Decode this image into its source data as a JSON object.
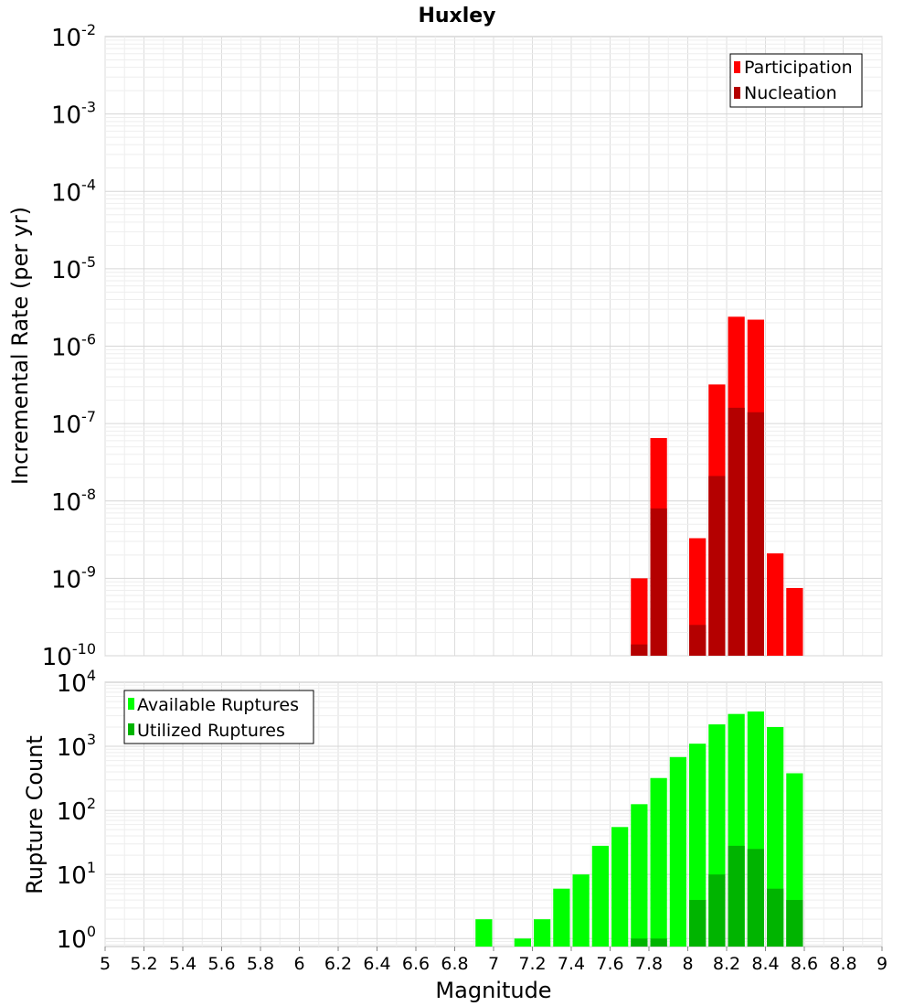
{
  "title": "Huxley",
  "chart_data": [
    {
      "type": "bar",
      "ylabel": "Incremental Rate (per yr)",
      "yscale": "log",
      "ylim": [
        1e-10,
        0.01
      ],
      "xlim": [
        5,
        9
      ],
      "ytick_exponents": [
        "-10",
        "-9",
        "-8",
        "-7",
        "-6",
        "-5",
        "-4",
        "-3",
        "-2"
      ],
      "ytick_base": "10",
      "grid": true,
      "legend_position": "top-right",
      "bin_width": 0.1,
      "series": [
        {
          "name": "Participation",
          "color": "#ff0000",
          "points": [
            [
              7.75,
              1e-09
            ],
            [
              7.85,
              6.5e-08
            ],
            [
              8.05,
              3.3e-09
            ],
            [
              8.15,
              3.2e-07
            ],
            [
              8.25,
              2.4e-06
            ],
            [
              8.35,
              2.2e-06
            ],
            [
              8.45,
              2.1e-09
            ],
            [
              8.55,
              7.5e-10
            ]
          ]
        },
        {
          "name": "Nucleation",
          "color": "#b40000",
          "points": [
            [
              7.75,
              1.4e-10
            ],
            [
              7.85,
              8e-09
            ],
            [
              8.05,
              2.5e-10
            ],
            [
              8.15,
              2.1e-08
            ],
            [
              8.25,
              1.6e-07
            ],
            [
              8.35,
              1.4e-07
            ]
          ]
        }
      ]
    },
    {
      "type": "bar",
      "ylabel": "Rupture Count",
      "xlabel": "Magnitude",
      "yscale": "log",
      "ylim": [
        0.75,
        10000
      ],
      "xlim": [
        5,
        9
      ],
      "ytick_exponents": [
        "0",
        "1",
        "2",
        "3",
        "4"
      ],
      "ytick_base": "10",
      "xticks": [
        "5",
        "5.2",
        "5.4",
        "5.6",
        "5.8",
        "6",
        "6.2",
        "6.4",
        "6.6",
        "6.8",
        "7",
        "7.2",
        "7.4",
        "7.6",
        "7.8",
        "8",
        "8.2",
        "8.4",
        "8.6",
        "8.8",
        "9"
      ],
      "grid": true,
      "legend_position": "top-left",
      "bin_width": 0.1,
      "series": [
        {
          "name": "Available Ruptures",
          "color": "#00ff00",
          "points": [
            [
              6.95,
              2
            ],
            [
              7.15,
              1
            ],
            [
              7.25,
              2
            ],
            [
              7.35,
              6
            ],
            [
              7.45,
              10
            ],
            [
              7.55,
              28
            ],
            [
              7.65,
              55
            ],
            [
              7.75,
              125
            ],
            [
              7.85,
              320
            ],
            [
              7.95,
              680
            ],
            [
              8.05,
              1100
            ],
            [
              8.15,
              2200
            ],
            [
              8.25,
              3200
            ],
            [
              8.35,
              3500
            ],
            [
              8.45,
              2000
            ],
            [
              8.55,
              380
            ]
          ]
        },
        {
          "name": "Utilized Ruptures",
          "color": "#00b400",
          "points": [
            [
              7.75,
              1
            ],
            [
              7.85,
              1
            ],
            [
              8.05,
              4
            ],
            [
              8.15,
              10
            ],
            [
              8.25,
              28
            ],
            [
              8.35,
              25
            ],
            [
              8.45,
              6
            ],
            [
              8.55,
              4
            ]
          ]
        }
      ]
    }
  ]
}
